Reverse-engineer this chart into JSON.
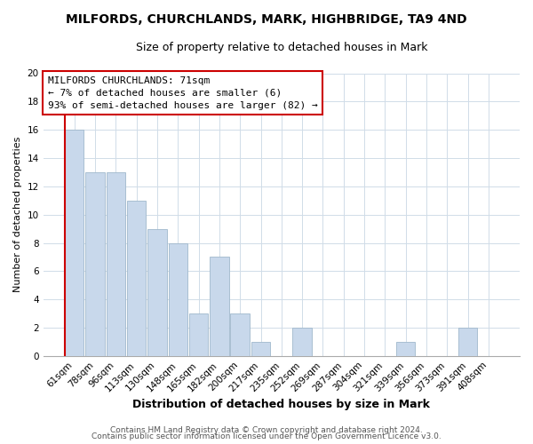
{
  "title": "MILFORDS, CHURCHLANDS, MARK, HIGHBRIDGE, TA9 4ND",
  "subtitle": "Size of property relative to detached houses in Mark",
  "xlabel": "Distribution of detached houses by size in Mark",
  "ylabel": "Number of detached properties",
  "bar_color": "#c8d8eb",
  "bar_edge_color": "#a0b8cc",
  "categories": [
    "61sqm",
    "78sqm",
    "96sqm",
    "113sqm",
    "130sqm",
    "148sqm",
    "165sqm",
    "182sqm",
    "200sqm",
    "217sqm",
    "235sqm",
    "252sqm",
    "269sqm",
    "287sqm",
    "304sqm",
    "321sqm",
    "339sqm",
    "356sqm",
    "373sqm",
    "391sqm",
    "408sqm"
  ],
  "values": [
    16,
    13,
    13,
    11,
    9,
    8,
    3,
    7,
    3,
    1,
    0,
    2,
    0,
    0,
    0,
    0,
    1,
    0,
    0,
    2,
    0
  ],
  "ylim": [
    0,
    20
  ],
  "yticks": [
    0,
    2,
    4,
    6,
    8,
    10,
    12,
    14,
    16,
    18,
    20
  ],
  "annotation_line1": "MILFORDS CHURCHLANDS: 71sqm",
  "annotation_line2": "← 7% of detached houses are smaller (6)",
  "annotation_line3": "93% of semi-detached houses are larger (82) →",
  "box_facecolor": "white",
  "box_edgecolor": "#cc0000",
  "marker_line_color": "#cc0000",
  "footer1": "Contains HM Land Registry data © Crown copyright and database right 2024.",
  "footer2": "Contains public sector information licensed under the Open Government Licence v3.0.",
  "grid_color": "#d0dce8",
  "background_color": "#ffffff",
  "title_fontsize": 10,
  "subtitle_fontsize": 9,
  "xlabel_fontsize": 9,
  "ylabel_fontsize": 8,
  "tick_fontsize": 7.5,
  "annotation_fontsize": 8,
  "footer_fontsize": 6.5
}
